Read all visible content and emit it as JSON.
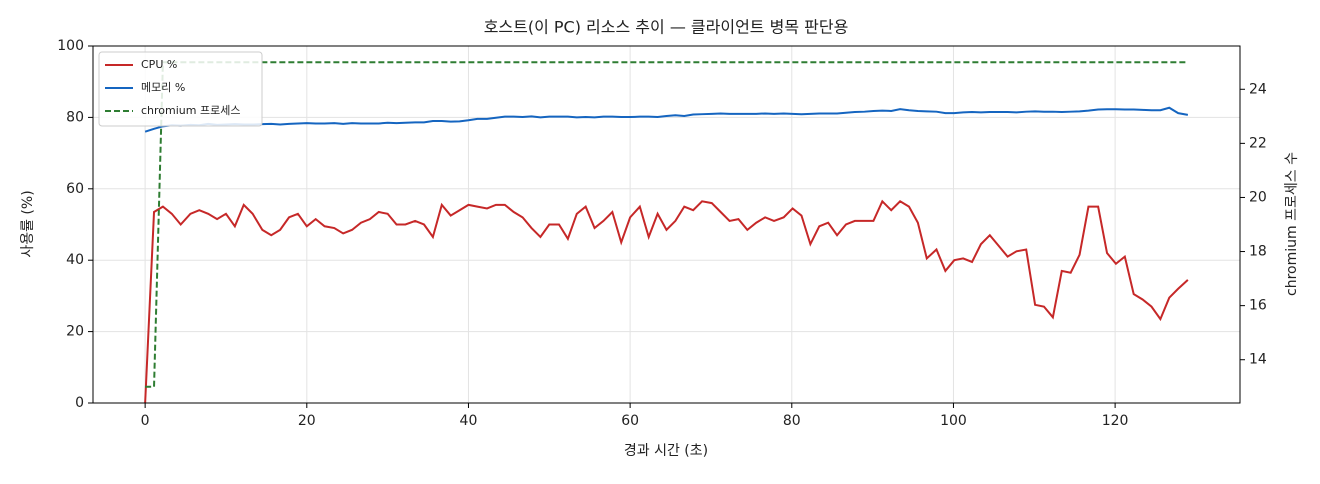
{
  "chart_data": {
    "type": "line",
    "title": "호스트(이 PC) 리소스 추이 — 클라이언트 병목 판단용",
    "xlabel": "경과 시간 (초)",
    "ylabel": "사용률 (%)",
    "y2label": "chromium 프로세스 수",
    "x": [
      0,
      1.1,
      2.2,
      3.3,
      4.4,
      5.6,
      6.7,
      7.8,
      8.9,
      10,
      11.1,
      12.2,
      13.3,
      14.5,
      15.6,
      16.7,
      17.8,
      18.9,
      20,
      21.1,
      22.2,
      23.4,
      24.5,
      25.6,
      26.7,
      27.8,
      28.9,
      30,
      31.1,
      32.2,
      33.4,
      34.5,
      35.6,
      36.7,
      37.8,
      38.9,
      40,
      41.1,
      42.3,
      43.4,
      44.5,
      45.6,
      46.7,
      47.8,
      48.9,
      50,
      51.2,
      52.3,
      53.4,
      54.5,
      55.6,
      56.7,
      57.8,
      58.9,
      60,
      61.2,
      62.3,
      63.4,
      64.5,
      65.6,
      66.7,
      67.8,
      68.9,
      70.1,
      71.2,
      72.3,
      73.4,
      74.5,
      75.6,
      76.7,
      77.8,
      79,
      80.1,
      81.2,
      82.3,
      83.4,
      84.5,
      85.6,
      86.7,
      87.8,
      89,
      90.1,
      91.2,
      92.3,
      93.4,
      94.5,
      95.6,
      96.7,
      97.9,
      99,
      100.1,
      101.2,
      102.3,
      103.4,
      104.5,
      105.6,
      106.7,
      107.8,
      109,
      110.1,
      111.2,
      112.3,
      113.4,
      114.5,
      115.6,
      116.7,
      117.9,
      119,
      120.1,
      121.2,
      122.3,
      123.4,
      124.5,
      125.6,
      126.7,
      127.8,
      129
    ],
    "series": [
      {
        "name": "CPU %",
        "color": "#c62828",
        "values": [
          0,
          53.5,
          55,
          53,
          50,
          53,
          54,
          53,
          51.5,
          53,
          49.5,
          55.5,
          53,
          48.5,
          47,
          48.5,
          52,
          53,
          49.5,
          51.5,
          49.5,
          49,
          47.5,
          48.5,
          50.5,
          51.5,
          53.5,
          53,
          50,
          50,
          51,
          50,
          46.5,
          55.5,
          52.5,
          54,
          55.5,
          55,
          54.5,
          55.5,
          55.5,
          53.5,
          52,
          49,
          46.5,
          50,
          50,
          46,
          53,
          55,
          49,
          51,
          53.5,
          45,
          52,
          55,
          46.5,
          53,
          48.5,
          51,
          55,
          54,
          56.5,
          56,
          53.5,
          51,
          51.5,
          48.5,
          50.5,
          52,
          51,
          52,
          54.5,
          52.5,
          44.5,
          49.5,
          50.5,
          47,
          50,
          51,
          51,
          51,
          56.5,
          54,
          56.5,
          55,
          50.5,
          40.5,
          43,
          37,
          40,
          40.5,
          39.5,
          44.5,
          47,
          44,
          41,
          42.5,
          43,
          27.5,
          27,
          24,
          37,
          36.5,
          41.5,
          55,
          55,
          42,
          39,
          41,
          30.5,
          29,
          27,
          23.5,
          29.5,
          32,
          34.5
        ]
      },
      {
        "name": "메모리 %",
        "color": "#1565c0",
        "values": [
          76,
          76.8,
          77.5,
          77.8,
          77.7,
          77.9,
          77.8,
          78.2,
          77.9,
          78,
          78.1,
          78,
          78,
          78.1,
          78.2,
          78,
          78.2,
          78.3,
          78.4,
          78.3,
          78.3,
          78.4,
          78.2,
          78.4,
          78.3,
          78.3,
          78.3,
          78.5,
          78.4,
          78.5,
          78.6,
          78.6,
          79,
          79,
          78.8,
          78.9,
          79.2,
          79.6,
          79.6,
          79.9,
          80.2,
          80.2,
          80.1,
          80.3,
          80,
          80.2,
          80.2,
          80.2,
          80,
          80.1,
          80,
          80.2,
          80.2,
          80.1,
          80.1,
          80.2,
          80.2,
          80.1,
          80.4,
          80.6,
          80.4,
          80.8,
          80.9,
          81,
          81.1,
          81,
          81,
          81,
          81,
          81.1,
          81,
          81.1,
          81,
          80.9,
          81,
          81.1,
          81.1,
          81.1,
          81.3,
          81.5,
          81.6,
          81.8,
          81.9,
          81.8,
          82.3,
          82,
          81.8,
          81.7,
          81.6,
          81.2,
          81.2,
          81.4,
          81.5,
          81.4,
          81.5,
          81.5,
          81.5,
          81.4,
          81.6,
          81.7,
          81.6,
          81.6,
          81.5,
          81.6,
          81.7,
          81.9,
          82.2,
          82.3,
          82.3,
          82.2,
          82.2,
          82.1,
          82,
          82,
          82.7,
          81.2,
          80.7
        ]
      },
      {
        "name": "chromium 프로세스",
        "color": "#2e7d32",
        "dashed": true,
        "axis": "y2",
        "values": [
          13,
          13,
          25,
          25,
          25,
          25,
          25,
          25,
          25,
          25,
          25,
          25,
          25,
          25,
          25,
          25,
          25,
          25,
          25,
          25,
          25,
          25,
          25,
          25,
          25,
          25,
          25,
          25,
          25,
          25,
          25,
          25,
          25,
          25,
          25,
          25,
          25,
          25,
          25,
          25,
          25,
          25,
          25,
          25,
          25,
          25,
          25,
          25,
          25,
          25,
          25,
          25,
          25,
          25,
          25,
          25,
          25,
          25,
          25,
          25,
          25,
          25,
          25,
          25,
          25,
          25,
          25,
          25,
          25,
          25,
          25,
          25,
          25,
          25,
          25,
          25,
          25,
          25,
          25,
          25,
          25,
          25,
          25,
          25,
          25,
          25,
          25,
          25,
          25,
          25,
          25,
          25,
          25,
          25,
          25,
          25,
          25,
          25,
          25,
          25,
          25,
          25,
          25,
          25,
          25,
          25,
          25,
          25,
          25,
          25,
          25,
          25,
          25,
          25,
          25,
          25,
          25
        ]
      }
    ],
    "xlim": [
      -6.45,
      135.45
    ],
    "xticks": [
      0,
      20,
      40,
      60,
      80,
      100,
      120
    ],
    "ylim": [
      0,
      100
    ],
    "yticks": [
      0,
      20,
      40,
      60,
      80,
      100
    ],
    "y2lim": [
      12.4,
      25.6
    ],
    "y2ticks": [
      14,
      16,
      18,
      20,
      22,
      24
    ],
    "grid": true,
    "legend": "upper left"
  }
}
